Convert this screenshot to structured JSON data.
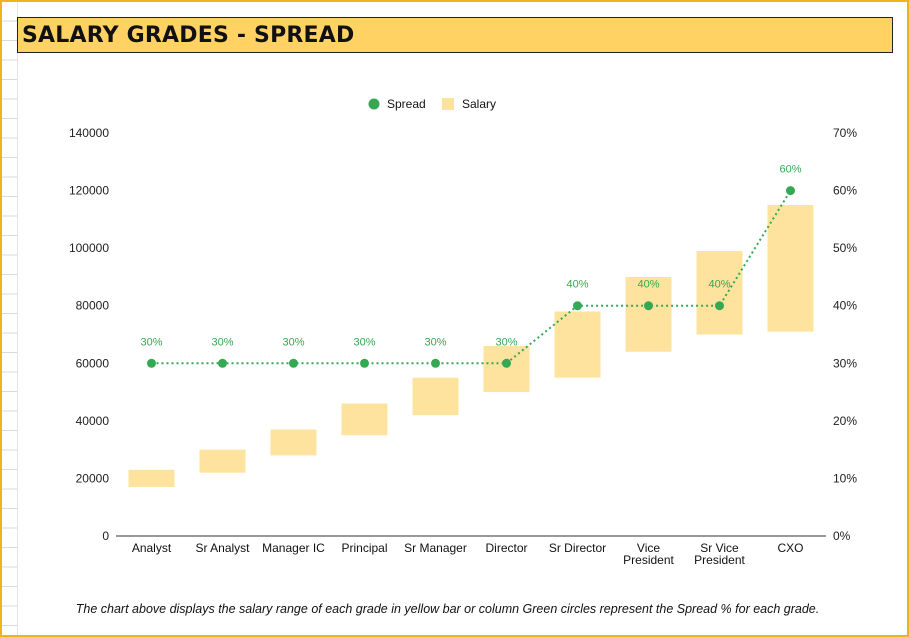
{
  "page": {
    "title": "SALARY GRADES - SPREAD",
    "caption": "The chart above displays the salary range of each grade in yellow bar or column Green circles represent the Spread % for each grade."
  },
  "colors": {
    "salary": "#fee39e",
    "spread": "#34a853",
    "title_bg": "#ffd263",
    "border": "#f2b21a"
  },
  "chart_data": {
    "type": "bar",
    "categories": [
      "Analyst",
      "Sr Analyst",
      "Manager IC",
      "Principal",
      "Sr Manager",
      "Director",
      "Sr Director",
      "Vice\nPresident",
      "Sr Vice\nPresident",
      "CXO"
    ],
    "series": [
      {
        "name": "Salary",
        "type": "floating-bar",
        "axis": "left",
        "low": [
          17000,
          22000,
          28000,
          35000,
          42000,
          50000,
          55000,
          64000,
          70000,
          71000
        ],
        "high": [
          23000,
          30000,
          37000,
          46000,
          55000,
          66000,
          78000,
          90000,
          99000,
          115000
        ]
      },
      {
        "name": "Spread",
        "type": "line",
        "axis": "right",
        "values": [
          30,
          30,
          30,
          30,
          30,
          30,
          40,
          40,
          40,
          60
        ],
        "labels": [
          "30%",
          "30%",
          "30%",
          "30%",
          "30%",
          "30%",
          "40%",
          "40%",
          "40%",
          "60%"
        ]
      }
    ],
    "legend": [
      {
        "name": "Spread",
        "marker": "circle"
      },
      {
        "name": "Salary",
        "marker": "square"
      }
    ],
    "legend_position": "top",
    "y_left": {
      "min": 0,
      "max": 140000,
      "ticks": [
        "0",
        "20000",
        "40000",
        "60000",
        "80000",
        "100000",
        "120000",
        "140000"
      ]
    },
    "y_right": {
      "min": 0,
      "max": 70,
      "ticks": [
        "0%",
        "10%",
        "20%",
        "30%",
        "40%",
        "50%",
        "60%",
        "70%"
      ]
    },
    "grid": false
  }
}
